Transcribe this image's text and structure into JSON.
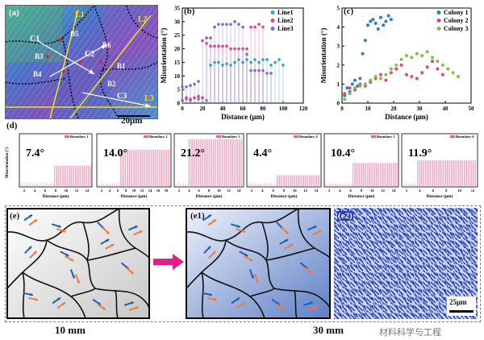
{
  "panel_a": {
    "label": "(a)",
    "lines": [
      "L1",
      "L2",
      "L3"
    ],
    "colonies": [
      "C1",
      "C2",
      "C3"
    ],
    "boundaries": [
      "B1",
      "B2",
      "B3",
      "B4",
      "B5",
      "B6"
    ],
    "scalebar": "20μm"
  },
  "panel_b": {
    "label": "(b)",
    "chart_data": {
      "type": "line",
      "ylabel": "Misorientation (°)",
      "xlabel": "Distance (μm)",
      "xlim": [
        0,
        120
      ],
      "ylim": [
        0,
        35
      ],
      "xticks": [
        "0",
        "20",
        "40",
        "60",
        "80",
        "100",
        "120"
      ],
      "yticks": [
        "0",
        "5",
        "10",
        "15",
        "20",
        "25",
        "30",
        "35"
      ],
      "legend": "top-right",
      "series": [
        {
          "name": "Line1",
          "color": "#2aa7c6",
          "x": [
            0,
            4,
            8,
            12,
            16,
            20,
            24,
            28,
            32,
            36,
            40,
            44,
            48,
            52,
            56,
            60,
            64,
            68,
            72,
            76,
            80,
            84,
            88,
            92,
            96,
            100
          ],
          "y": [
            1,
            1.5,
            1,
            2,
            1.5,
            2,
            1,
            14,
            15,
            15,
            14,
            14.5,
            14,
            15,
            16,
            15,
            16,
            15,
            16,
            15,
            16,
            16,
            14,
            15,
            16,
            14
          ]
        },
        {
          "name": "Line2",
          "color": "#e8447a",
          "x": [
            0,
            4,
            8,
            12,
            16,
            20,
            24,
            28,
            32,
            36,
            40,
            44,
            48,
            52,
            56,
            60,
            64,
            68,
            72,
            76,
            80
          ],
          "y": [
            1,
            2,
            1.5,
            2,
            2.5,
            2,
            22,
            21,
            21,
            21,
            21,
            21,
            20,
            20,
            20,
            20,
            20,
            28,
            28,
            29,
            28
          ]
        },
        {
          "name": "Line3",
          "color": "#7b6ad1",
          "x": [
            0,
            4,
            8,
            12,
            16,
            20,
            24,
            28,
            32,
            36,
            40,
            44,
            48,
            52,
            56,
            60,
            64,
            68,
            72,
            76,
            80,
            84,
            88
          ],
          "y": [
            6,
            6,
            6.5,
            7,
            8,
            23,
            24,
            24,
            28,
            29,
            29,
            29,
            29,
            30,
            29,
            28,
            18,
            12,
            12,
            12,
            12,
            11,
            11
          ]
        }
      ]
    }
  },
  "panel_c": {
    "label": "(c)",
    "chart_data": {
      "type": "scatter",
      "ylabel": "Misorientation (°)",
      "xlabel": "Distance (μm)",
      "xlim": [
        0,
        50
      ],
      "ylim": [
        0,
        5
      ],
      "xticks": [
        "0",
        "10",
        "20",
        "30",
        "40",
        "50"
      ],
      "yticks": [
        "0",
        "1",
        "2",
        "3",
        "4",
        "5"
      ],
      "legend": "top-right",
      "series": [
        {
          "name": "Colony 1",
          "color": "#2a7fc0",
          "x": [
            1,
            2,
            3,
            4,
            5,
            6,
            7,
            8,
            9,
            10,
            11,
            12,
            13,
            14,
            15,
            16,
            17,
            18,
            19
          ],
          "y": [
            0.4,
            0.8,
            0.6,
            1.0,
            1.2,
            0.9,
            1.3,
            2.6,
            3.3,
            4.1,
            4.3,
            4.4,
            4.2,
            3.9,
            4.5,
            4.1,
            4.3,
            4.6,
            4.4
          ]
        },
        {
          "name": "Colony 2",
          "color": "#e0487a",
          "x": [
            1,
            3,
            5,
            7,
            9,
            11,
            13,
            15,
            17,
            19,
            21,
            23,
            25,
            27,
            29,
            31,
            33,
            35,
            37,
            39
          ],
          "y": [
            0.5,
            0.8,
            0.7,
            1.0,
            0.9,
            1.1,
            1.3,
            1.5,
            1.2,
            1.6,
            1.8,
            2.0,
            1.5,
            1.4,
            1.3,
            1.6,
            1.9,
            2.2,
            1.8,
            1.5
          ]
        },
        {
          "name": "Colony 3",
          "color": "#7cc24a",
          "x": [
            1,
            3,
            5,
            7,
            9,
            11,
            13,
            15,
            17,
            19,
            21,
            23,
            25,
            27,
            29,
            31,
            33,
            35,
            37,
            39,
            41,
            43,
            45
          ],
          "y": [
            0.2,
            0.5,
            0.8,
            0.9,
            1.0,
            1.2,
            1.4,
            1.3,
            1.5,
            1.8,
            2.0,
            2.3,
            2.5,
            2.4,
            2.6,
            2.5,
            2.7,
            2.4,
            2.2,
            2.0,
            1.8,
            1.6,
            1.4
          ]
        }
      ]
    }
  },
  "panel_d": {
    "label": "(d)",
    "ylabel": "Misorientation (°)",
    "xlabel": "Distance (μm)",
    "panels": [
      {
        "legend": "Boundary 1",
        "angle": "7.4°",
        "xticks": [
          "2",
          "4",
          "6",
          "8",
          "10",
          "12",
          "14"
        ]
      },
      {
        "legend": "Boundary 2",
        "angle": "14.0°",
        "xticks": [
          "2",
          "4",
          "6",
          "8",
          "10",
          "12",
          "14",
          "16",
          "18"
        ]
      },
      {
        "legend": "Boundary 3",
        "angle": "21.2°",
        "xticks": [
          "2",
          "4",
          "6",
          "8",
          "10",
          "12",
          "14"
        ]
      },
      {
        "legend": "Boundary 4",
        "angle": "4.4°",
        "xticks": [
          "2",
          "4",
          "6",
          "8",
          "10",
          "12",
          "14"
        ]
      },
      {
        "legend": "Boundary 5",
        "angle": "10.4°",
        "xticks": [
          "2",
          "4",
          "6",
          "8",
          "10",
          "12",
          "14"
        ]
      },
      {
        "legend": "Boundary 6",
        "angle": "11.9°",
        "xticks": [
          "2",
          "4",
          "6",
          "8",
          "10",
          "12"
        ]
      }
    ]
  },
  "panel_e": {
    "label": "(e)",
    "caption": "10 mm"
  },
  "panel_e1": {
    "label": "(e1)",
    "caption": "30 mm"
  },
  "panel_e2": {
    "label": "(e2)",
    "scalebar": "25μm"
  },
  "watermark": "材料科学与工程",
  "colors": {
    "arrow_blue": "#1f5fb0",
    "arrow_orange": "#f07a3a",
    "magenta_arrow": "#e0208a",
    "dashed": "#5a7fb0"
  }
}
